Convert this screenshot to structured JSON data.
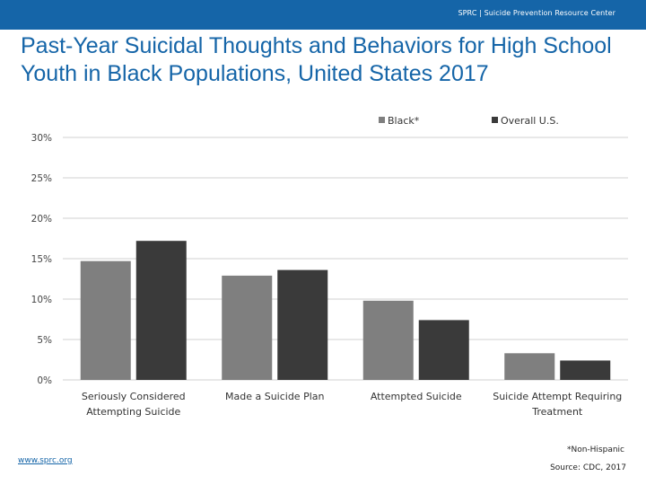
{
  "header": {
    "brand_text": "SPRC  |  Suicide Prevention Resource Center",
    "bar_color": "#1565a8"
  },
  "title": "Past-Year Suicidal Thoughts and Behaviors for High School Youth in Black Populations, United States 2017",
  "chart_data": {
    "type": "bar",
    "title": "Past-Year Suicidal Thoughts and Behaviors for High School Youth in Black Populations, United States 2017",
    "categories": [
      [
        "Seriously Considered",
        "Attempting Suicide"
      ],
      [
        "Made a Suicide Plan"
      ],
      [
        "Attempted Suicide"
      ],
      [
        "Suicide Attempt Requiring",
        "Treatment"
      ]
    ],
    "series": [
      {
        "name": "Black*",
        "color": "#7f7f7f",
        "values": [
          14.7,
          12.9,
          9.8,
          3.3
        ]
      },
      {
        "name": "Overall U.S.",
        "color": "#3a3a3a",
        "values": [
          17.2,
          13.6,
          7.4,
          2.4
        ]
      }
    ],
    "yticks": [
      "0%",
      "5%",
      "10%",
      "15%",
      "20%",
      "25%",
      "30%"
    ],
    "ylim": [
      0,
      30
    ],
    "ystep": 5,
    "xlabel": "",
    "ylabel": "",
    "legend_position": "top-right",
    "grid": true
  },
  "footnote": "*Non-Hispanic",
  "source": "Source: CDC, 2017",
  "website": "www.sprc.org"
}
